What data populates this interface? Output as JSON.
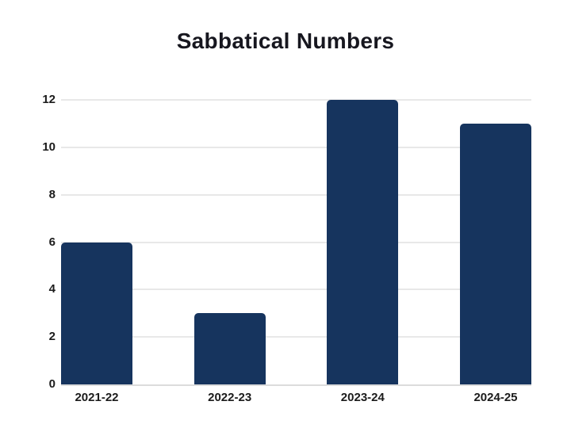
{
  "title": "Sabbatical Numbers",
  "chart_data": {
    "type": "bar",
    "title": "Sabbatical Numbers",
    "categories": [
      "2021-22",
      "2022-23",
      "2023-24",
      "2024-25"
    ],
    "values": [
      6,
      3,
      12,
      11
    ],
    "xlabel": "",
    "ylabel": "",
    "ylim": [
      0,
      12
    ],
    "yticks": [
      0,
      2,
      4,
      6,
      8,
      10,
      12
    ],
    "grid": true,
    "legend": false,
    "colors": {
      "bar": "#16345e",
      "gridline": "#e8e8e8",
      "baseline": "#dcdcdc",
      "axis_text": "#1b1b1b",
      "title_text": "#17171f",
      "background": "#ffffff"
    }
  }
}
